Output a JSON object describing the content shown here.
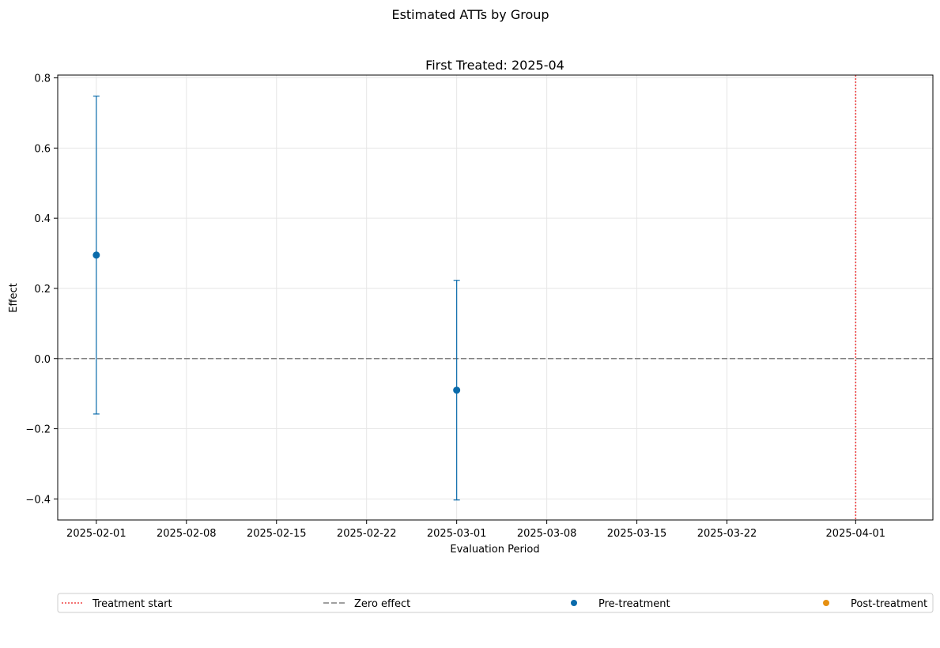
{
  "figure": {
    "suptitle": "Estimated ATTs by Group"
  },
  "chart_data": {
    "type": "scatter",
    "title": "First Treated: 2025-04",
    "xlabel": "Evaluation Period",
    "ylabel": "Effect",
    "x_axis_type": "date",
    "xlim": [
      "2025-01-29",
      "2025-04-07"
    ],
    "ylim": [
      -0.46,
      0.808
    ],
    "x_ticks": [
      "2025-02-01",
      "2025-02-08",
      "2025-02-15",
      "2025-02-22",
      "2025-03-01",
      "2025-03-08",
      "2025-03-15",
      "2025-03-22",
      "2025-04-01"
    ],
    "y_ticks": [
      -0.4,
      -0.2,
      0.0,
      0.2,
      0.4,
      0.6,
      0.8
    ],
    "y_tick_labels": [
      "−0.4",
      "−0.2",
      "0.0",
      "0.2",
      "0.4",
      "0.6",
      "0.8"
    ],
    "grid": true,
    "series": [
      {
        "name": "Pre-treatment",
        "color": "#0a6bab",
        "points": [
          {
            "x": "2025-02-01",
            "y": 0.295,
            "ci_low": -0.158,
            "ci_high": 0.748
          },
          {
            "x": "2025-03-01",
            "y": -0.09,
            "ci_low": -0.403,
            "ci_high": 0.223
          }
        ]
      },
      {
        "name": "Post-treatment",
        "color": "#e69012",
        "points": []
      }
    ],
    "reference_lines": [
      {
        "name": "Treatment start",
        "orientation": "vertical",
        "value": "2025-04-01",
        "color": "#ef4444",
        "style": "dotted"
      },
      {
        "name": "Zero effect",
        "orientation": "horizontal",
        "value": 0,
        "color": "#808080",
        "style": "dashed"
      }
    ],
    "legend": {
      "placement": "bottom",
      "entries": [
        {
          "label": "Treatment start",
          "marker": "dotted-line",
          "color": "#ef4444"
        },
        {
          "label": "Zero effect",
          "marker": "dashed-line",
          "color": "#808080"
        },
        {
          "label": "Pre-treatment",
          "marker": "dot",
          "color": "#0a6bab"
        },
        {
          "label": "Post-treatment",
          "marker": "dot",
          "color": "#e69012"
        }
      ]
    }
  }
}
